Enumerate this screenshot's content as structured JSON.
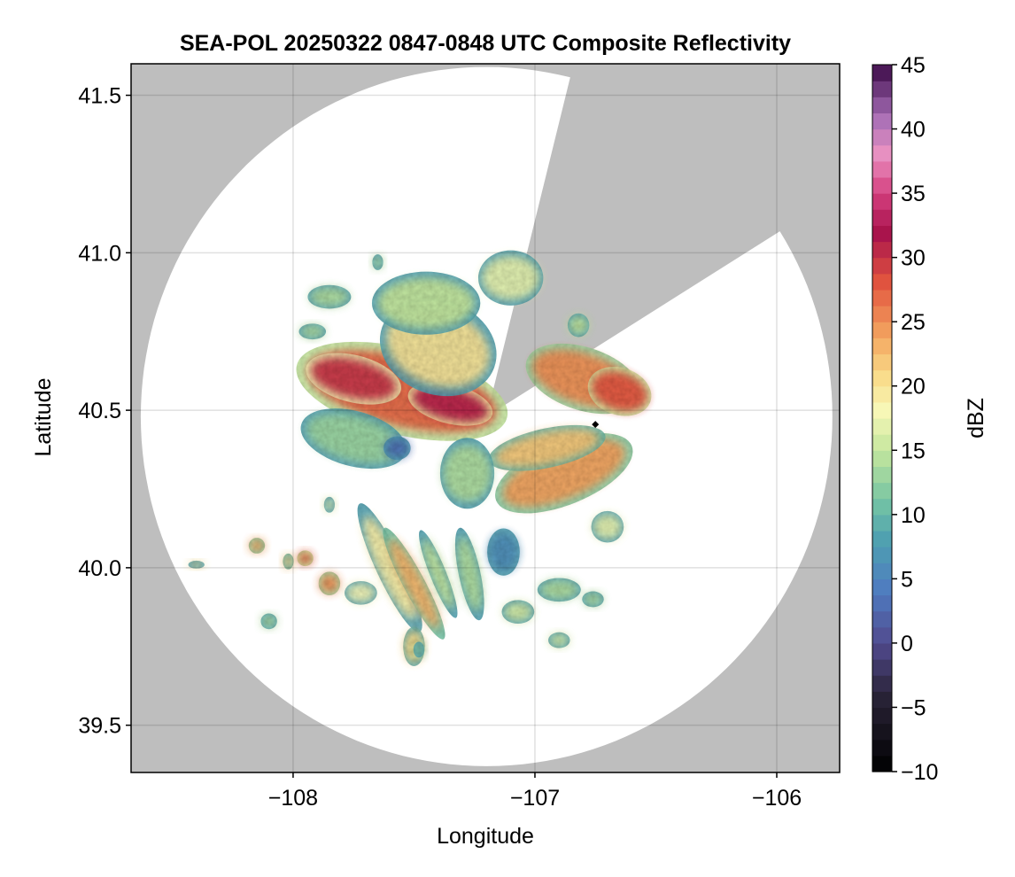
{
  "chart_data": {
    "type": "heatmap",
    "title": "SEA-POL 20250322 0847-0848 UTC Composite Reflectivity",
    "xlabel": "Longitude",
    "ylabel": "Latitude",
    "xlim": [
      -108.67,
      -105.74
    ],
    "ylim": [
      39.35,
      41.6
    ],
    "x_ticks": [
      -108,
      -107,
      -106
    ],
    "x_tick_labels": [
      "−108",
      "−107",
      "−106"
    ],
    "y_ticks": [
      39.5,
      40.0,
      40.5,
      41.0,
      41.5
    ],
    "y_tick_labels": [
      "39.5",
      "40.0",
      "40.5",
      "41.0",
      "41.5"
    ],
    "grid": true,
    "background_color": "#bebebe",
    "radar_coverage": {
      "center": {
        "lon": -107.2,
        "lat": 40.48
      },
      "radius_deg_lon": 1.43,
      "radius_deg_lat": 1.11,
      "blocked_sector_deg": [
        14,
        58
      ]
    },
    "marker": {
      "lon": -106.75,
      "lat": 40.455,
      "shape": "diamond",
      "color": "#000000"
    },
    "colorbar": {
      "label": "dBZ",
      "range": [
        -10,
        45
      ],
      "ticks": [
        -10,
        -5,
        0,
        5,
        10,
        15,
        20,
        25,
        30,
        35,
        40,
        45
      ],
      "tick_labels": [
        "−10",
        "−5",
        "0",
        "5",
        "10",
        "15",
        "20",
        "25",
        "30",
        "35",
        "40",
        "45"
      ],
      "colormap_stops": [
        {
          "v": -10,
          "c": "#000000"
        },
        {
          "v": -4,
          "c": "#2a2438"
        },
        {
          "v": 0,
          "c": "#514a8e"
        },
        {
          "v": 4,
          "c": "#4f7bc0"
        },
        {
          "v": 8,
          "c": "#4ea0b0"
        },
        {
          "v": 11,
          "c": "#74c3a4"
        },
        {
          "v": 15,
          "c": "#c4e69d"
        },
        {
          "v": 18,
          "c": "#f7f8b8"
        },
        {
          "v": 21,
          "c": "#f9d986"
        },
        {
          "v": 24,
          "c": "#f3a35f"
        },
        {
          "v": 28,
          "c": "#e2553f"
        },
        {
          "v": 32,
          "c": "#a7124c"
        },
        {
          "v": 35,
          "c": "#d5407f"
        },
        {
          "v": 38,
          "c": "#ea92c2"
        },
        {
          "v": 41,
          "c": "#a56db5"
        },
        {
          "v": 45,
          "c": "#3b0a47"
        }
      ]
    },
    "echo_regions": [
      {
        "lon": -107.55,
        "lat": 40.56,
        "rlon": 0.4,
        "rlat": 0.11,
        "rot": -14,
        "dbz": 27
      },
      {
        "lon": -107.75,
        "lat": 40.6,
        "rlon": 0.18,
        "rlat": 0.06,
        "rot": -14,
        "dbz": 30
      },
      {
        "lon": -107.35,
        "lat": 40.52,
        "rlon": 0.16,
        "rlat": 0.05,
        "rot": -14,
        "dbz": 31
      },
      {
        "lon": -107.4,
        "lat": 40.7,
        "rlon": 0.22,
        "rlat": 0.12,
        "rot": -20,
        "dbz": 20
      },
      {
        "lon": -107.45,
        "lat": 40.84,
        "rlon": 0.2,
        "rlat": 0.08,
        "rot": 0,
        "dbz": 15
      },
      {
        "lon": -107.1,
        "lat": 40.92,
        "rlon": 0.12,
        "rlat": 0.07,
        "rot": 0,
        "dbz": 17
      },
      {
        "lon": -107.75,
        "lat": 40.41,
        "rlon": 0.2,
        "rlat": 0.07,
        "rot": -15,
        "dbz": 13
      },
      {
        "lon": -107.57,
        "lat": 40.38,
        "rlon": 0.05,
        "rlat": 0.03,
        "rot": 0,
        "dbz": 3
      },
      {
        "lon": -106.88,
        "lat": 40.3,
        "rlon": 0.27,
        "rlat": 0.08,
        "rot": 22,
        "dbz": 24
      },
      {
        "lon": -106.95,
        "lat": 40.38,
        "rlon": 0.22,
        "rlat": 0.05,
        "rot": 12,
        "dbz": 22
      },
      {
        "lon": -106.8,
        "lat": 40.6,
        "rlon": 0.22,
        "rlat": 0.08,
        "rot": -18,
        "dbz": 25
      },
      {
        "lon": -106.65,
        "lat": 40.56,
        "rlon": 0.12,
        "rlat": 0.06,
        "rot": -18,
        "dbz": 28
      },
      {
        "lon": -107.28,
        "lat": 40.3,
        "rlon": 0.1,
        "rlat": 0.09,
        "rot": 0,
        "dbz": 14
      },
      {
        "lon": -107.13,
        "lat": 40.05,
        "rlon": 0.06,
        "rlat": 0.06,
        "rot": 0,
        "dbz": 6
      },
      {
        "lon": -107.6,
        "lat": 40.0,
        "rlon": 0.05,
        "rlat": 0.18,
        "rot": 25,
        "dbz": 19
      },
      {
        "lon": -107.5,
        "lat": 39.95,
        "rlon": 0.04,
        "rlat": 0.16,
        "rot": 28,
        "dbz": 23
      },
      {
        "lon": -107.4,
        "lat": 39.98,
        "rlon": 0.03,
        "rlat": 0.12,
        "rot": 22,
        "dbz": 15
      },
      {
        "lon": -107.27,
        "lat": 39.98,
        "rlon": 0.04,
        "rlat": 0.12,
        "rot": 12,
        "dbz": 14
      },
      {
        "lon": -107.85,
        "lat": 39.95,
        "rlon": 0.04,
        "rlat": 0.03,
        "rot": 0,
        "dbz": 25
      },
      {
        "lon": -107.95,
        "lat": 40.03,
        "rlon": 0.03,
        "rlat": 0.02,
        "rot": 0,
        "dbz": 27
      },
      {
        "lon": -108.15,
        "lat": 40.07,
        "rlon": 0.03,
        "rlat": 0.02,
        "rot": 0,
        "dbz": 24
      },
      {
        "lon": -108.02,
        "lat": 40.02,
        "rlon": 0.02,
        "rlat": 0.02,
        "rot": 0,
        "dbz": 22
      },
      {
        "lon": -108.4,
        "lat": 40.01,
        "rlon": 0.03,
        "rlat": 0.01,
        "rot": 0,
        "dbz": 20
      },
      {
        "lon": -107.72,
        "lat": 39.92,
        "rlon": 0.06,
        "rlat": 0.03,
        "rot": 0,
        "dbz": 18
      },
      {
        "lon": -107.5,
        "lat": 39.75,
        "rlon": 0.04,
        "rlat": 0.05,
        "rot": 0,
        "dbz": 21
      },
      {
        "lon": -107.85,
        "lat": 40.2,
        "rlon": 0.02,
        "rlat": 0.02,
        "rot": 0,
        "dbz": 17
      },
      {
        "lon": -107.07,
        "lat": 39.86,
        "rlon": 0.06,
        "rlat": 0.03,
        "rot": 0,
        "dbz": 16
      },
      {
        "lon": -106.9,
        "lat": 39.93,
        "rlon": 0.08,
        "rlat": 0.03,
        "rot": 0,
        "dbz": 14
      },
      {
        "lon": -106.9,
        "lat": 39.77,
        "rlon": 0.04,
        "rlat": 0.02,
        "rot": 0,
        "dbz": 16
      },
      {
        "lon": -106.76,
        "lat": 39.9,
        "rlon": 0.04,
        "rlat": 0.02,
        "rot": 0,
        "dbz": 14
      },
      {
        "lon": -106.7,
        "lat": 40.13,
        "rlon": 0.06,
        "rlat": 0.04,
        "rot": 0,
        "dbz": 17
      },
      {
        "lon": -107.85,
        "lat": 40.86,
        "rlon": 0.08,
        "rlat": 0.03,
        "rot": 0,
        "dbz": 14
      },
      {
        "lon": -106.82,
        "lat": 40.77,
        "rlon": 0.04,
        "rlat": 0.03,
        "rot": 0,
        "dbz": 15
      },
      {
        "lon": -107.65,
        "lat": 40.97,
        "rlon": 0.02,
        "rlat": 0.02,
        "rot": 0,
        "dbz": 14
      },
      {
        "lon": -107.48,
        "lat": 39.74,
        "rlon": 0.02,
        "rlat": 0.02,
        "rot": 0,
        "dbz": 12
      },
      {
        "lon": -108.1,
        "lat": 39.83,
        "rlon": 0.03,
        "rlat": 0.02,
        "rot": 0,
        "dbz": 14
      },
      {
        "lon": -107.92,
        "lat": 40.75,
        "rlon": 0.05,
        "rlat": 0.02,
        "rot": 0,
        "dbz": 14
      }
    ]
  }
}
